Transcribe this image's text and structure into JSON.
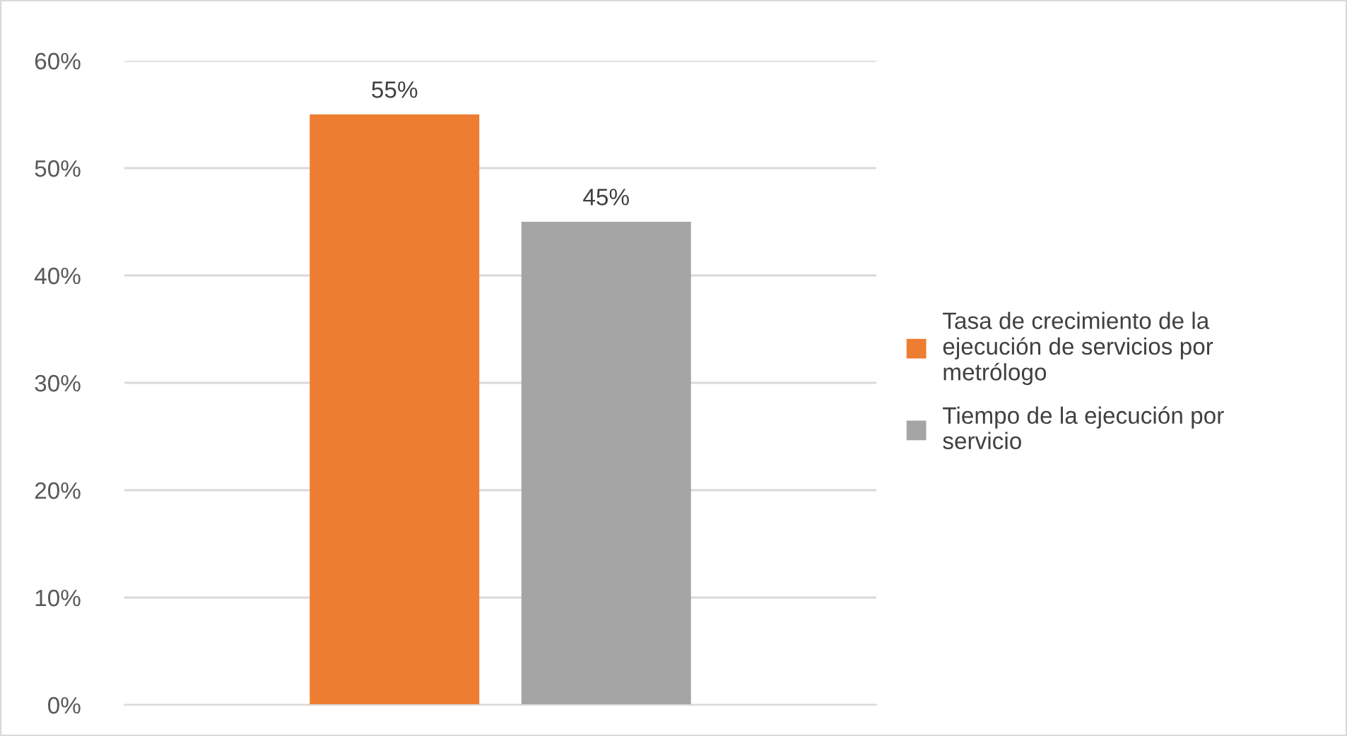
{
  "chart_data": {
    "type": "bar",
    "categories": [
      null
    ],
    "series": [
      {
        "name": "Tasa de crecimiento de la ejecución de servicios por metrólogo",
        "color": "#ed7d31",
        "values": [
          55
        ],
        "value_labels": [
          "55%"
        ]
      },
      {
        "name": "Tiempo de la ejecución por servicio",
        "color": "#a5a5a5",
        "values": [
          45
        ],
        "value_labels": [
          "45%"
        ]
      }
    ],
    "ylim": [
      0,
      60
    ],
    "yticks": [
      {
        "value": 0,
        "label": "0%"
      },
      {
        "value": 10,
        "label": "10%"
      },
      {
        "value": 20,
        "label": "20%"
      },
      {
        "value": 30,
        "label": "30%"
      },
      {
        "value": 40,
        "label": "40%"
      },
      {
        "value": 50,
        "label": "50%"
      },
      {
        "value": 60,
        "label": "60%"
      }
    ],
    "grid": "y",
    "legend": "right"
  }
}
